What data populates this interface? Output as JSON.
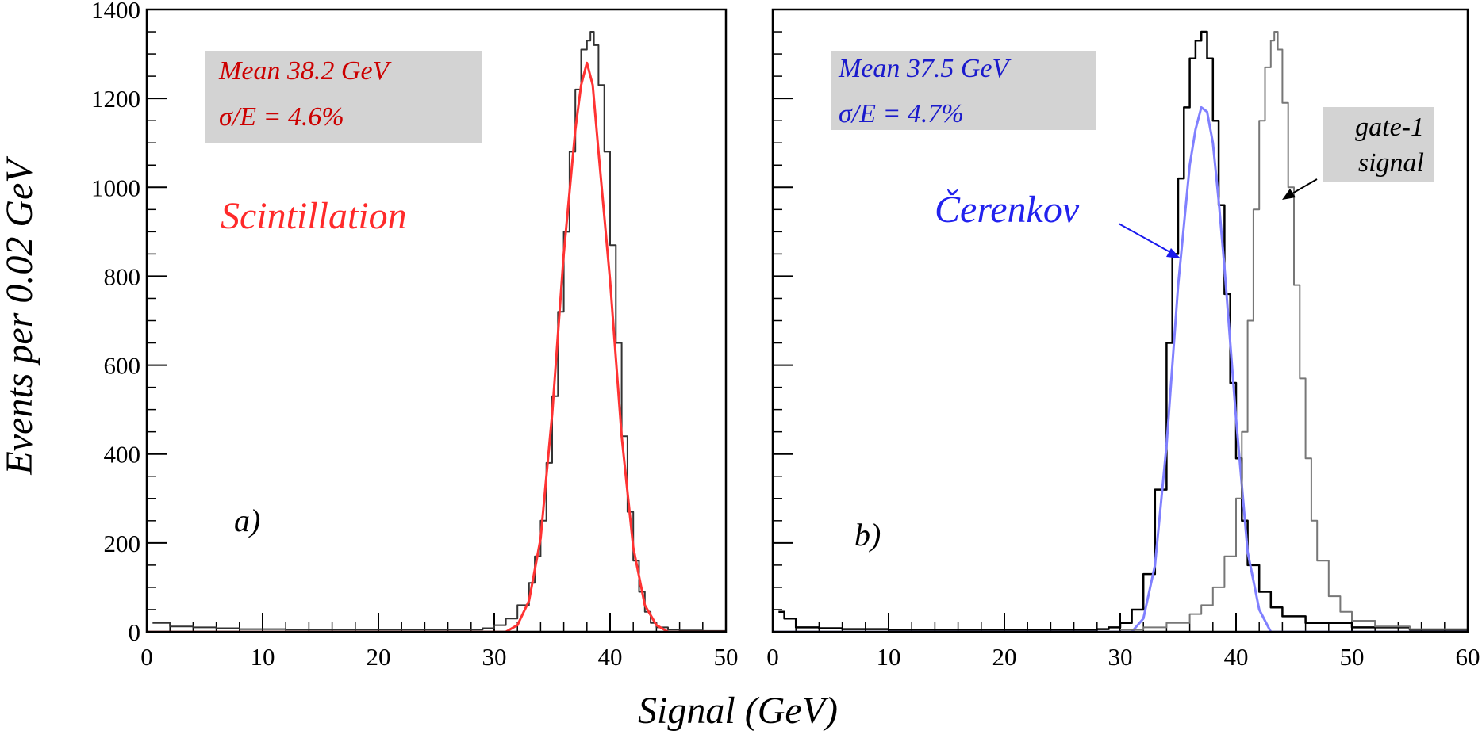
{
  "figure": {
    "ylabel": "Events per 0.02 GeV",
    "xlabel": "Signal (GeV)"
  },
  "chart_data": [
    {
      "type": "line",
      "panel": "a)",
      "xlim": [
        0,
        50
      ],
      "ylim": [
        0,
        1400
      ],
      "xticks": [
        0,
        10,
        20,
        30,
        40,
        50
      ],
      "yticks": [
        0,
        200,
        400,
        600,
        800,
        1000,
        1200,
        1400
      ],
      "ylabel": "Events per 0.02 GeV",
      "xlabel": "Signal (GeV)",
      "stats": {
        "line1": "Mean  38.2 GeV",
        "line2": "σ/E = 4.6%",
        "color": "#cc0000"
      },
      "annotation": {
        "text": "Scintillation",
        "color": "#ff2a2a"
      },
      "series": [
        {
          "role": "histogram",
          "color": "#333333",
          "x": [
            0.5,
            2,
            4,
            6,
            8,
            10,
            12,
            14,
            16,
            18,
            20,
            22,
            24,
            26,
            28,
            29,
            30,
            31,
            32,
            33,
            33.5,
            34,
            34.5,
            35,
            35.5,
            36,
            36.5,
            37,
            37.5,
            38,
            38.3,
            38.6,
            39,
            39.5,
            40,
            40.5,
            41,
            41.5,
            42,
            42.5,
            43,
            43.5,
            44,
            45,
            46,
            48,
            50
          ],
          "y": [
            20,
            12,
            10,
            8,
            6,
            6,
            5,
            5,
            5,
            5,
            5,
            5,
            5,
            5,
            5,
            8,
            15,
            30,
            60,
            110,
            170,
            250,
            380,
            530,
            720,
            900,
            1080,
            1220,
            1310,
            1330,
            1350,
            1320,
            1230,
            1080,
            870,
            650,
            440,
            270,
            160,
            90,
            45,
            20,
            10,
            5,
            3,
            2,
            2
          ]
        },
        {
          "role": "fit",
          "color": "#ff3333",
          "x": [
            31,
            32,
            33,
            34,
            35,
            36,
            37,
            37.5,
            38,
            38.5,
            39,
            40,
            41,
            42,
            43,
            44,
            45
          ],
          "y": [
            0,
            15,
            70,
            210,
            490,
            850,
            1130,
            1230,
            1280,
            1230,
            1080,
            790,
            440,
            190,
            60,
            15,
            0
          ]
        }
      ]
    },
    {
      "type": "line",
      "panel": "b)",
      "xlim": [
        0,
        60
      ],
      "ylim": [
        0,
        1400
      ],
      "xticks": [
        0,
        10,
        20,
        30,
        40,
        50,
        60
      ],
      "xlabel": "Signal (GeV)",
      "stats": {
        "line1": "Mean  37.5 GeV",
        "line2": "σ/E = 4.7%",
        "color": "#1a1acc"
      },
      "annotation": {
        "text": "Čerenkov",
        "color": "#2222ee"
      },
      "gate_label": {
        "line1": "gate-1",
        "line2": "signal"
      },
      "series": [
        {
          "role": "histogram",
          "name": "Čerenkov",
          "color": "#000000",
          "x": [
            0.5,
            1,
            2,
            4,
            6,
            8,
            10,
            12,
            14,
            16,
            18,
            20,
            22,
            24,
            26,
            28,
            29,
            30,
            31,
            32,
            33,
            34,
            34.5,
            35,
            35.5,
            36,
            36.5,
            37,
            37.5,
            38,
            38.5,
            39,
            39.5,
            40,
            40.5,
            41,
            42,
            43,
            44,
            46,
            50,
            55,
            60
          ],
          "y": [
            45,
            30,
            10,
            8,
            6,
            6,
            5,
            5,
            5,
            5,
            5,
            5,
            5,
            5,
            5,
            6,
            10,
            20,
            50,
            130,
            320,
            650,
            850,
            1020,
            1180,
            1290,
            1330,
            1350,
            1290,
            1150,
            960,
            760,
            560,
            390,
            250,
            150,
            90,
            55,
            35,
            20,
            10,
            5,
            3
          ]
        },
        {
          "role": "fit",
          "color": "#8080ff",
          "x": [
            31,
            32,
            33,
            34,
            35,
            36,
            36.5,
            37,
            37.5,
            38,
            38.5,
            39,
            40,
            41,
            42,
            43
          ],
          "y": [
            0,
            30,
            150,
            420,
            780,
            1050,
            1130,
            1180,
            1170,
            1100,
            970,
            820,
            480,
            180,
            50,
            0
          ]
        },
        {
          "role": "histogram",
          "name": "gate-1 signal",
          "color": "#777777",
          "x": [
            30,
            32,
            34,
            36,
            37,
            38,
            39,
            40,
            40.5,
            41,
            41.5,
            42,
            42.5,
            43,
            43.3,
            43.6,
            44,
            44.5,
            45,
            45.5,
            46,
            46.5,
            47,
            48,
            49,
            50,
            52,
            55,
            60
          ],
          "y": [
            5,
            10,
            20,
            40,
            60,
            100,
            170,
            300,
            450,
            700,
            950,
            1150,
            1270,
            1330,
            1350,
            1310,
            1190,
            1000,
            780,
            570,
            390,
            250,
            160,
            80,
            45,
            25,
            12,
            6,
            3
          ]
        }
      ]
    }
  ]
}
